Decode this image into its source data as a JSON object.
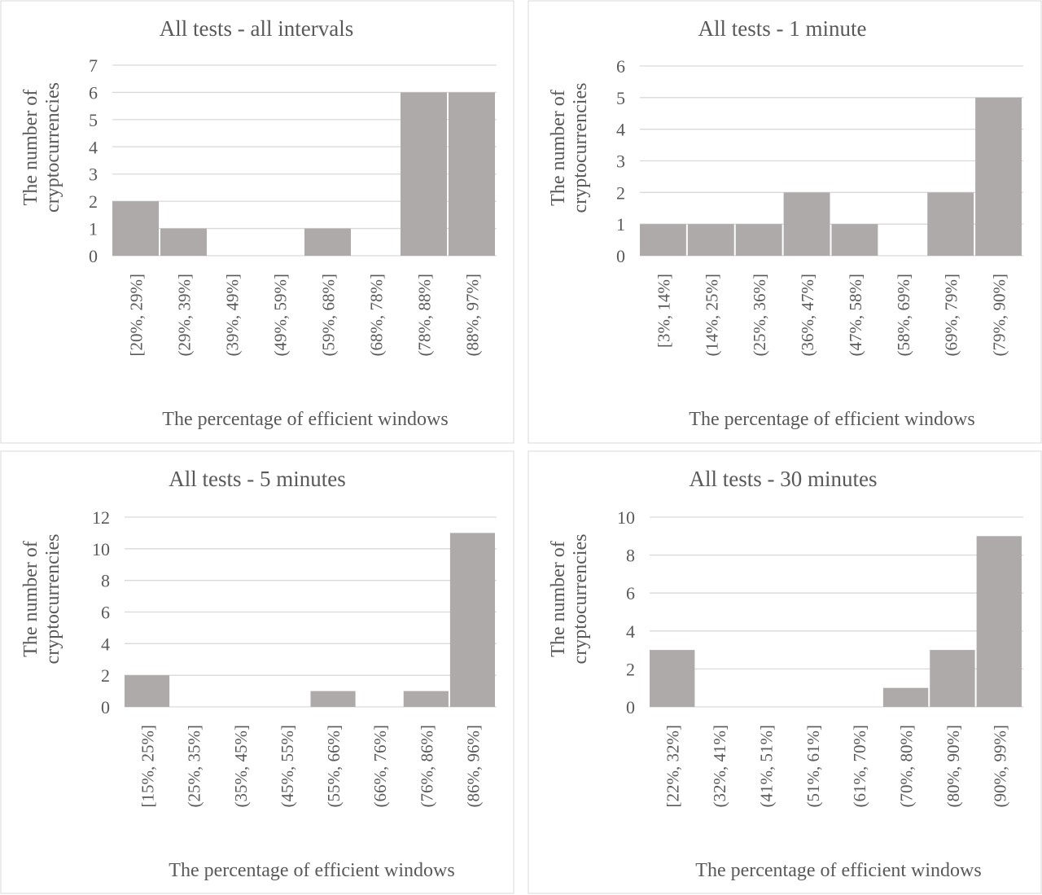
{
  "chart_data": [
    {
      "type": "bar",
      "title": "All tests - all intervals",
      "xlabel": "The percentage of efficient  windows",
      "ylabel_lines": [
        "The number of",
        "cryptocurrencies"
      ],
      "categories": [
        "[20%, 29%]",
        "(29%, 39%]",
        "(39%, 49%]",
        "(49%, 59%]",
        "(59%, 68%]",
        "(68%, 78%]",
        "(78%, 88%]",
        "(88%, 97%]"
      ],
      "values": [
        2,
        1,
        0,
        0,
        1,
        0,
        6,
        6
      ],
      "ylim": [
        0,
        7
      ],
      "yticks": [
        0,
        1,
        2,
        3,
        4,
        5,
        6,
        7
      ],
      "grid": true,
      "bar_color": "#AEAAAA"
    },
    {
      "type": "bar",
      "title": "All tests - 1 minute",
      "xlabel": "The percentage of efficient  windows",
      "ylabel_lines": [
        "The number of",
        "cryptocurrencies"
      ],
      "categories": [
        "[3%, 14%]",
        "(14%, 25%]",
        "(25%, 36%]",
        "(36%, 47%]",
        "(47%, 58%]",
        "(58%, 69%]",
        "(69%, 79%]",
        "(79%, 90%]"
      ],
      "values": [
        1,
        1,
        1,
        2,
        1,
        0,
        2,
        5
      ],
      "ylim": [
        0,
        6
      ],
      "yticks": [
        0,
        1,
        2,
        3,
        4,
        5,
        6
      ],
      "grid": true,
      "bar_color": "#AEAAAA"
    },
    {
      "type": "bar",
      "title": "All tests - 5 minutes",
      "xlabel": "The percentage of efficient  windows",
      "ylabel_lines": [
        "The number of",
        "cryptocurrencies"
      ],
      "categories": [
        "[15%, 25%]",
        "(25%, 35%]",
        "(35%, 45%]",
        "(45%, 55%]",
        "(55%, 66%]",
        "(66%, 76%]",
        "(76%, 86%]",
        "(86%, 96%]"
      ],
      "values": [
        2,
        0,
        0,
        0,
        1,
        0,
        1,
        11
      ],
      "ylim": [
        0,
        12
      ],
      "yticks": [
        0,
        2,
        4,
        6,
        8,
        10,
        12
      ],
      "grid": true,
      "bar_color": "#AEAAAA"
    },
    {
      "type": "bar",
      "title": "All tests - 30 minutes",
      "xlabel": "The percentage of efficient  windows",
      "ylabel_lines": [
        "The number of",
        "cryptocurrencies"
      ],
      "categories": [
        "[22%, 32%]",
        "(32%, 41%]",
        "(41%, 51%]",
        "(51%, 61%]",
        "(61%, 70%]",
        "(70%, 80%]",
        "(80%, 90%]",
        "(90%, 99%]"
      ],
      "values": [
        3,
        0,
        0,
        0,
        0,
        1,
        3,
        9
      ],
      "ylim": [
        0,
        10
      ],
      "yticks": [
        0,
        2,
        4,
        6,
        8,
        10
      ],
      "grid": true,
      "bar_color": "#AEAAAA"
    }
  ]
}
